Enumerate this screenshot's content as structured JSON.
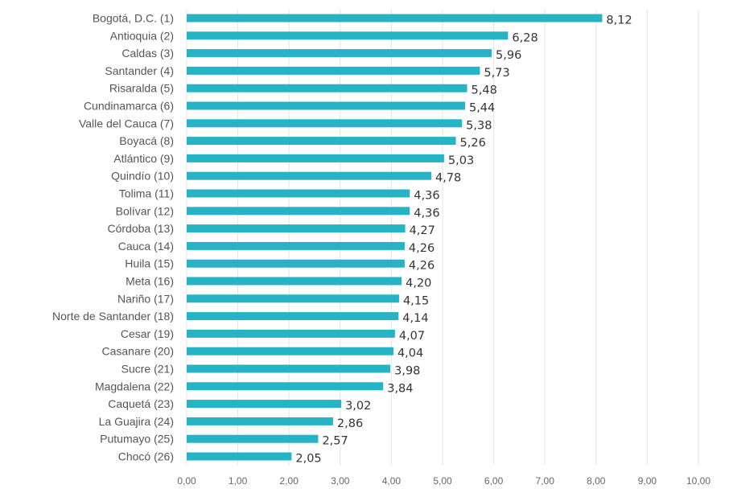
{
  "chart_data": {
    "type": "bar",
    "orientation": "horizontal",
    "categories": [
      "Bogotá, D.C. (1)",
      "Antioquia (2)",
      "Caldas (3)",
      "Santander (4)",
      "Risaralda (5)",
      "Cundinamarca (6)",
      "Valle del Cauca (7)",
      "Boyacá (8)",
      "Atlántico (9)",
      "Quindío (10)",
      "Tolima (11)",
      "Bolívar (12)",
      "Córdoba (13)",
      "Cauca (14)",
      "Huila (15)",
      "Meta (16)",
      "Nariño (17)",
      "Norte de Santander (18)",
      "Cesar (19)",
      "Casanare (20)",
      "Sucre (21)",
      "Magdalena (22)",
      "Caquetá (23)",
      "La Guajira (24)",
      "Putumayo (25)",
      "Chocó (26)"
    ],
    "values": [
      8.12,
      6.28,
      5.96,
      5.73,
      5.48,
      5.44,
      5.38,
      5.26,
      5.03,
      4.78,
      4.36,
      4.36,
      4.27,
      4.26,
      4.26,
      4.2,
      4.15,
      4.14,
      4.07,
      4.04,
      3.98,
      3.84,
      3.02,
      2.86,
      2.57,
      2.05
    ],
    "value_labels": [
      "8,12",
      "6,28",
      "5,96",
      "5,73",
      "5,48",
      "5,44",
      "5,38",
      "5,26",
      "5,03",
      "4,78",
      "4,36",
      "4,36",
      "4,27",
      "4,26",
      "4,26",
      "4,20",
      "4,15",
      "4,14",
      "4,07",
      "4,04",
      "3,98",
      "3,84",
      "3,02",
      "2,86",
      "2,57",
      "2,05"
    ],
    "x_ticks": [
      "0,00",
      "1,00",
      "2,00",
      "3,00",
      "4,00",
      "5,00",
      "6,00",
      "7,00",
      "8,00",
      "9,00",
      "10,00"
    ],
    "xlim": [
      0,
      10
    ],
    "title": "",
    "xlabel": "",
    "ylabel": "",
    "grid": "vertical",
    "legend": "none",
    "bar_color": "#26b3c6"
  }
}
